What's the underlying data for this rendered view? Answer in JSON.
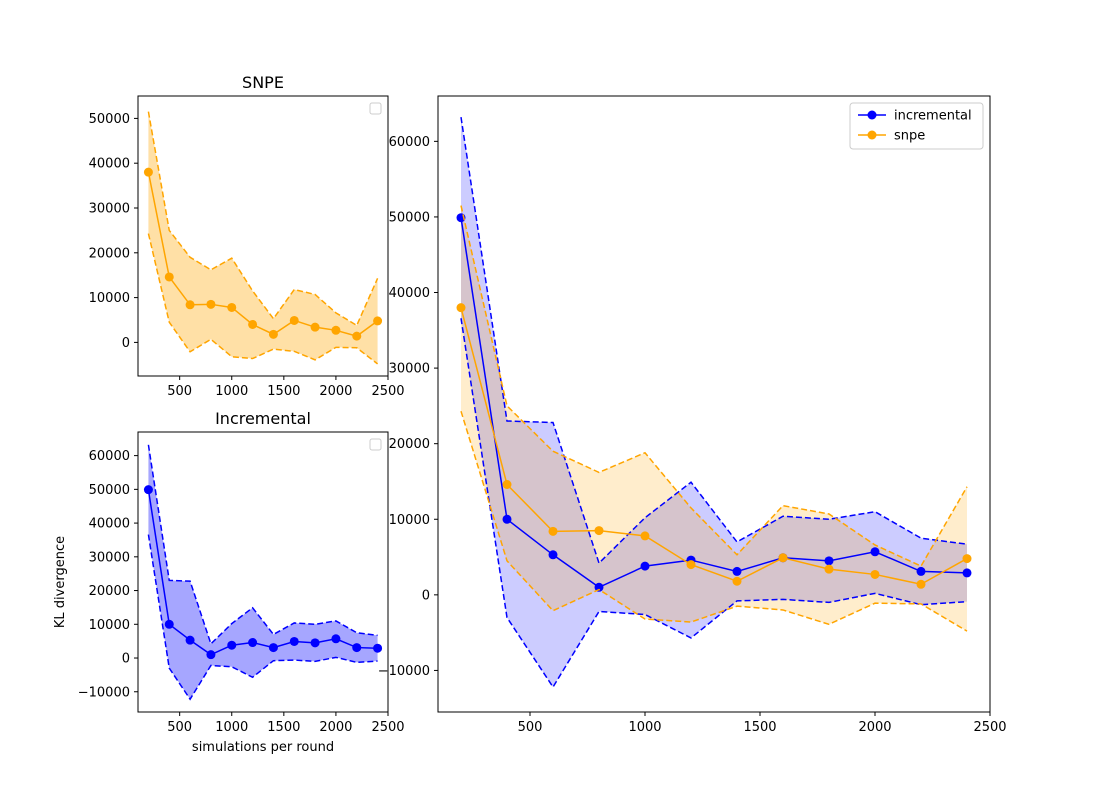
{
  "colors": {
    "incremental": "#0000ff",
    "snpe": "#ffa500",
    "incremental_fill": "#0000ff",
    "snpe_fill": "#ffa500"
  },
  "chart_data": [
    {
      "type": "line",
      "title": "SNPE",
      "xlabel": "",
      "ylabel": "",
      "xlim": [
        100,
        2500
      ],
      "ylim": [
        -7500,
        55000
      ],
      "xticks": [
        500,
        1000,
        1500,
        2000,
        2500
      ],
      "yticks": [
        0,
        10000,
        20000,
        30000,
        40000,
        50000
      ],
      "grid": false,
      "legend": "empty, top-right",
      "x": [
        200,
        400,
        600,
        800,
        1000,
        1200,
        1400,
        1600,
        1800,
        2000,
        2200,
        2400
      ],
      "series": [
        {
          "key": "snpe",
          "values": [
            38000,
            14600,
            8400,
            8500,
            7800,
            4000,
            1800,
            4900,
            3400,
            2700,
            1400,
            4800
          ],
          "upper": [
            51500,
            25000,
            19000,
            16200,
            18800,
            11500,
            5300,
            11800,
            10700,
            6600,
            3800,
            14300
          ],
          "lower": [
            24300,
            4500,
            -2100,
            700,
            -3200,
            -3600,
            -1500,
            -2000,
            -3900,
            -1100,
            -1200,
            -4800
          ]
        }
      ]
    },
    {
      "type": "line",
      "title": "Incremental",
      "xlabel": "simulations per round",
      "ylabel": "KL divergence",
      "xlim": [
        100,
        2500
      ],
      "ylim": [
        -16000,
        67000
      ],
      "xticks": [
        500,
        1000,
        1500,
        2000,
        2500
      ],
      "yticks": [
        -10000,
        0,
        10000,
        20000,
        30000,
        40000,
        50000,
        60000
      ],
      "grid": false,
      "legend": "empty, top-right",
      "x": [
        200,
        400,
        600,
        800,
        1000,
        1200,
        1400,
        1600,
        1800,
        2000,
        2200,
        2400
      ],
      "series": [
        {
          "key": "incremental",
          "values": [
            49900,
            10000,
            5300,
            1000,
            3800,
            4600,
            3100,
            4900,
            4500,
            5700,
            3100,
            2900
          ],
          "upper": [
            63200,
            23000,
            22800,
            4200,
            10200,
            14900,
            7000,
            10400,
            10000,
            11000,
            7500,
            6700
          ],
          "lower": [
            36600,
            -3000,
            -12200,
            -2200,
            -2600,
            -5700,
            -800,
            -600,
            -1000,
            200,
            -1300,
            -900
          ]
        }
      ]
    },
    {
      "type": "line",
      "title": "",
      "xlabel": "",
      "ylabel": "",
      "xlim": [
        100,
        2500
      ],
      "ylim": [
        -15500,
        66000
      ],
      "xticks": [
        500,
        1000,
        1500,
        2000,
        2500
      ],
      "yticks": [
        -10000,
        0,
        10000,
        20000,
        30000,
        40000,
        50000,
        60000
      ],
      "grid": false,
      "legend": "top-right",
      "x": [
        200,
        400,
        600,
        800,
        1000,
        1200,
        1400,
        1600,
        1800,
        2000,
        2200,
        2400
      ],
      "series": [
        {
          "key": "incremental",
          "name": "incremental",
          "values": [
            49900,
            10000,
            5300,
            1000,
            3800,
            4600,
            3100,
            4900,
            4500,
            5700,
            3100,
            2900
          ],
          "upper": [
            63200,
            23000,
            22800,
            4200,
            10200,
            14900,
            7000,
            10400,
            10000,
            11000,
            7500,
            6700
          ],
          "lower": [
            36600,
            -3000,
            -12200,
            -2200,
            -2600,
            -5700,
            -800,
            -600,
            -1000,
            200,
            -1300,
            -900
          ]
        },
        {
          "key": "snpe",
          "name": "snpe",
          "values": [
            38000,
            14600,
            8400,
            8500,
            7800,
            4000,
            1800,
            4900,
            3400,
            2700,
            1400,
            4800
          ],
          "upper": [
            51500,
            25000,
            19000,
            16200,
            18800,
            11500,
            5300,
            11800,
            10700,
            6600,
            3800,
            14300
          ],
          "lower": [
            24300,
            4500,
            -2100,
            700,
            -3200,
            -3600,
            -1500,
            -2000,
            -3900,
            -1100,
            -1200,
            -4800
          ]
        }
      ]
    }
  ]
}
